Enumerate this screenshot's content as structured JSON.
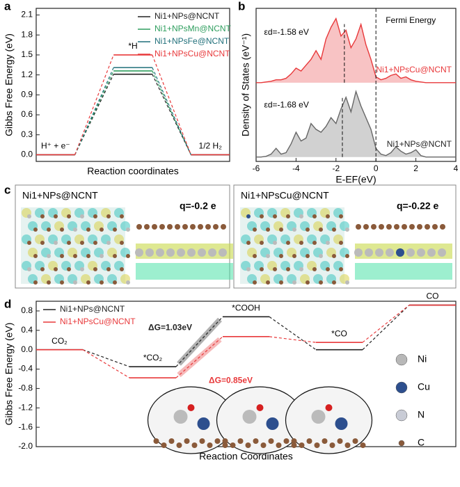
{
  "panel_labels": [
    "a",
    "b",
    "c",
    "d"
  ],
  "chart_data": [
    {
      "type": "energy",
      "xlabel": "Reaction coordinates",
      "ylabel": "Gibbs Free Energy (eV)",
      "categories": [
        "H⁺ + e⁻",
        "*H",
        "1/2 H₂"
      ],
      "series": [
        {
          "name": "Ni1+NPs@NCNT",
          "color": "#222222",
          "values": [
            0,
            1.21,
            0
          ]
        },
        {
          "name": "Ni1+NPsMn@NCNT",
          "color": "#2e9e5e",
          "values": [
            0,
            1.26,
            0
          ]
        },
        {
          "name": "Ni1+NPsFe@NCNT",
          "color": "#1f6f7a",
          "values": [
            0,
            1.31,
            0
          ]
        },
        {
          "name": "Ni1+NPsCu@NCNT",
          "color": "#e8383a",
          "values": [
            0,
            1.5,
            0
          ]
        }
      ],
      "ylim": [
        -0.1,
        2.2
      ],
      "yticks": [
        {
          "value": 0,
          "label": "0.0"
        },
        0.3,
        0.6,
        0.9,
        1.2,
        1.5,
        1.8,
        2.1
      ],
      "legend": "upper right"
    },
    {
      "type": "area",
      "xlabel": "E-EF(eV)",
      "ylabel": "Density of States (eV⁻¹)",
      "x": [
        -6,
        -5.75,
        -5.5,
        -5.25,
        -5,
        -4.75,
        -4.5,
        -4.25,
        -4,
        -3.75,
        -3.5,
        -3.25,
        -3,
        -2.75,
        -2.5,
        -2.25,
        -2,
        -1.75,
        -1.5,
        -1.25,
        -1,
        -0.75,
        -0.5,
        -0.25,
        0,
        0.25,
        0.5,
        0.75,
        1,
        1.25,
        1.5,
        1.75,
        2,
        2.25,
        2.5,
        2.75,
        3,
        3.25,
        3.5,
        3.75,
        4
      ],
      "series": [
        {
          "name": "Ni1+NPsCu@NCNT",
          "color": "#e8383a",
          "d_center": -1.58,
          "d_center_label": "εd=-1.58 eV",
          "values": [
            5.4,
            5.4,
            5.45,
            5.5,
            5.6,
            5.6,
            5.7,
            6.0,
            6.4,
            6.2,
            6.6,
            7.0,
            7.6,
            7.0,
            8.4,
            9.2,
            9.8,
            8.6,
            9.0,
            7.8,
            8.4,
            9.4,
            8.0,
            7.0,
            5.8,
            5.6,
            5.7,
            5.9,
            6.0,
            5.7,
            5.8,
            5.6,
            5.5,
            5.45,
            5.4,
            5.4,
            5.4,
            5.4,
            5.4,
            5.4,
            5.4
          ]
        },
        {
          "name": "Ni1+NPs@NCNT",
          "color": "#666666",
          "d_center": -1.68,
          "d_center_label": "εd=-1.68 eV",
          "values": [
            0.3,
            0.3,
            0.35,
            0.5,
            0.9,
            0.5,
            0.6,
            1.2,
            2.0,
            1.4,
            1.6,
            2.6,
            2.2,
            2.0,
            2.4,
            3.0,
            2.6,
            3.6,
            4.4,
            3.4,
            4.8,
            3.8,
            3.0,
            2.2,
            0.9,
            0.5,
            0.4,
            0.6,
            1.0,
            0.7,
            0.5,
            0.6,
            0.8,
            0.4,
            0.3,
            0.3,
            0.3,
            0.3,
            0.3,
            0.3,
            0.3
          ]
        }
      ],
      "fermi_level": 0,
      "fermi_label": "Fermi Energy",
      "xlim": [
        -6,
        4
      ],
      "xticks": [
        -6,
        -4,
        -2,
        0,
        2,
        4
      ],
      "ylim": [
        0,
        10.5
      ]
    },
    {
      "type": "energy",
      "xlabel": "Reaction Coordinates",
      "ylabel": "Gibbs Free Energy (eV)",
      "categories": [
        "CO₂",
        "*CO₂",
        "*COOH",
        "*CO",
        "CO"
      ],
      "series": [
        {
          "name": "Ni1+NPs@NCNT",
          "color": "#222222",
          "values": [
            0,
            -0.35,
            0.68,
            0.0,
            0.92
          ]
        },
        {
          "name": "Ni1+NPsCu@NCNT",
          "color": "#e8383a",
          "values": [
            0,
            -0.58,
            0.27,
            0.15,
            0.92
          ]
        }
      ],
      "annotations": [
        {
          "text": "ΔG=1.03eV",
          "color": "#222222"
        },
        {
          "text": "ΔG=0.85eV",
          "color": "#e8383a"
        }
      ],
      "atom_legend": [
        {
          "name": "Ni",
          "color": "#b8b8b8"
        },
        {
          "name": "Cu",
          "color": "#2d4f8e"
        },
        {
          "name": "N",
          "color": "#c9ccd6"
        },
        {
          "name": "C",
          "color": "#8a5a3a"
        }
      ],
      "ylim": [
        -2.0,
        1.0
      ],
      "yticks": [
        {
          "value": -2,
          "label": "-2.0"
        },
        -1.6,
        -1.2,
        -0.8,
        -0.4,
        {
          "value": 0,
          "label": "0.0"
        },
        0.4,
        0.8
      ],
      "legend": "upper left"
    }
  ],
  "structures": [
    {
      "label": "Ni1+NPs@NCNT",
      "charge": "q=-0.2 e"
    },
    {
      "label": "Ni1+NPsCu@NCNT",
      "charge": "q=-0.22 e"
    }
  ]
}
